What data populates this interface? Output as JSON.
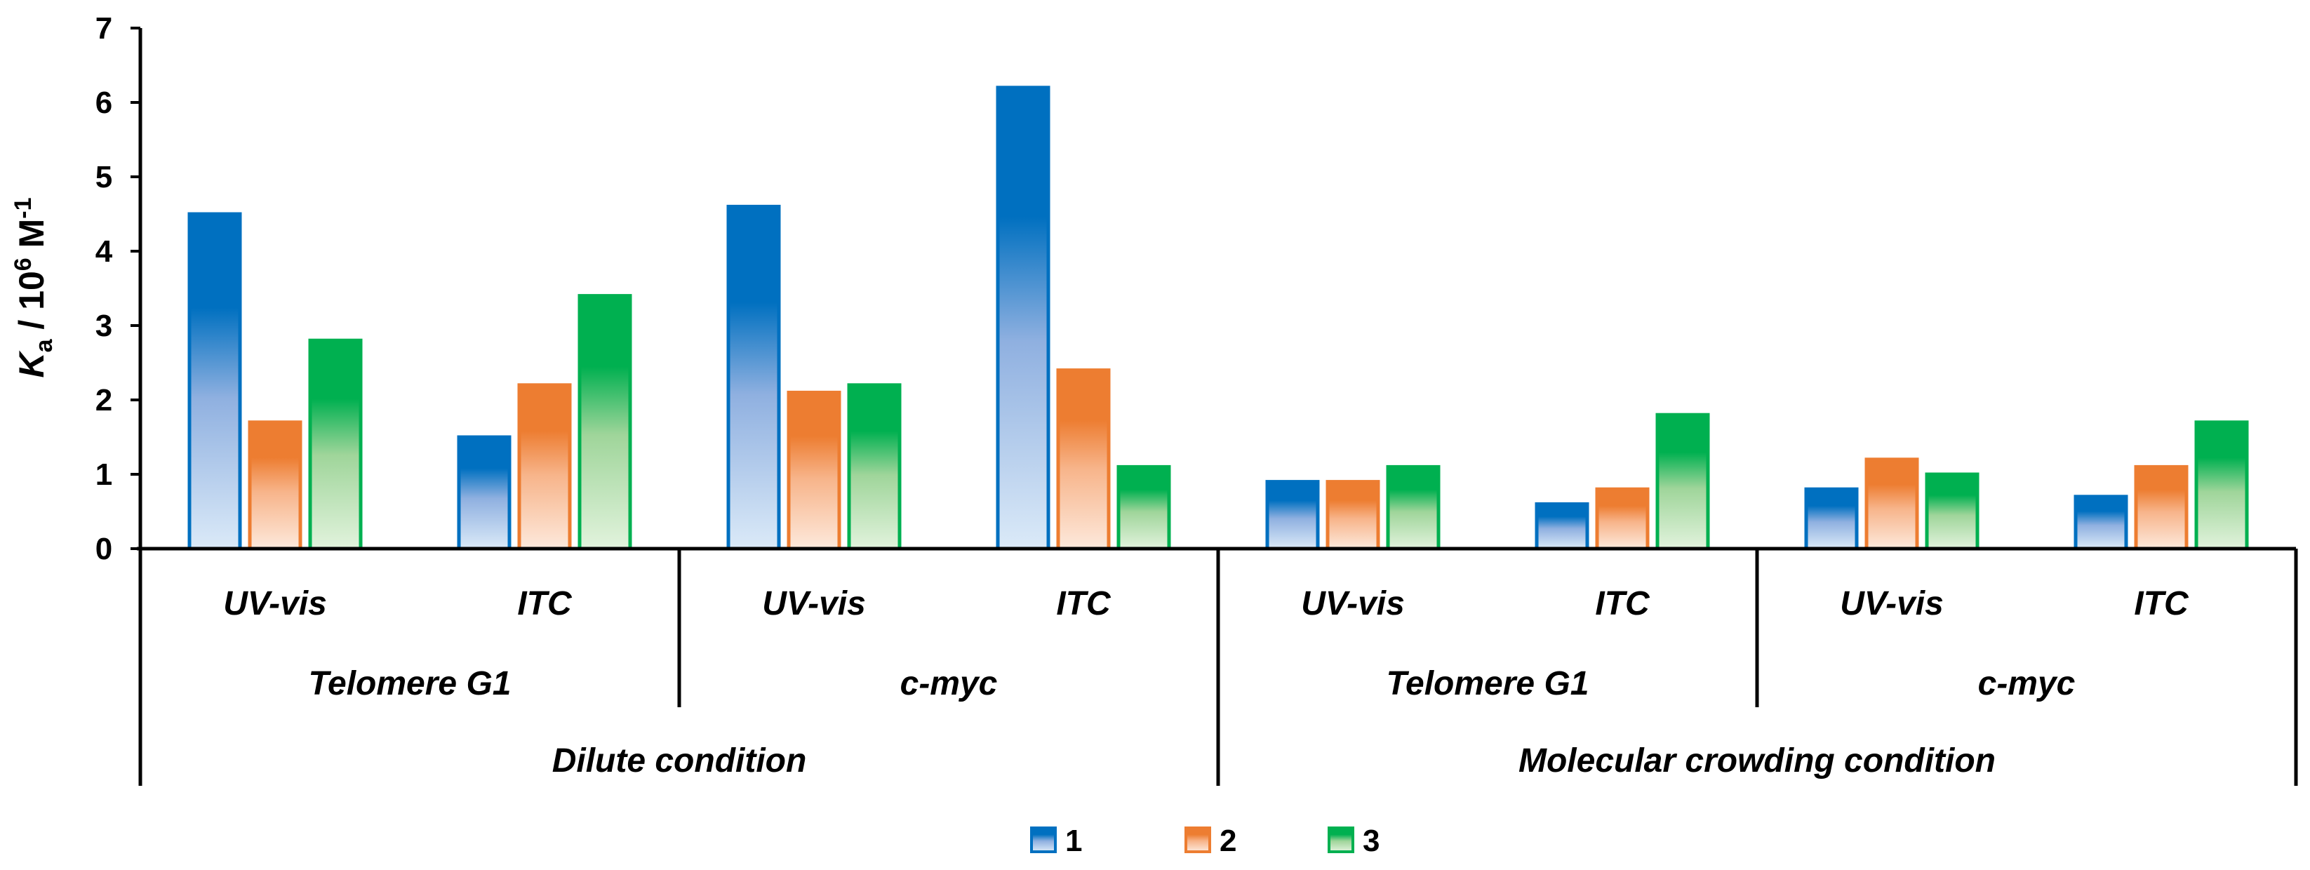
{
  "chart_data": {
    "type": "bar",
    "ylabel": {
      "main": "K",
      "sub": "a",
      "mid": " / 10",
      "sup1": "6",
      "unit": " M",
      "sup2": "-1"
    },
    "ylim": [
      0,
      7
    ],
    "yticks": [
      "0",
      "1",
      "2",
      "3",
      "4",
      "5",
      "6",
      "7"
    ],
    "categories_level1": [
      "UV-vis",
      "ITC",
      "UV-vis",
      "ITC",
      "UV-vis",
      "ITC",
      "UV-vis",
      "ITC"
    ],
    "categories_level2": [
      "Telomere G1",
      "c-myc",
      "Telomere G1",
      "c-myc"
    ],
    "categories_level3": [
      "Dilute condition",
      "Molecular crowding condition"
    ],
    "series": [
      {
        "name": "1",
        "color": "#0070c0",
        "light": "#dbeaf8",
        "mid": "#8fb0e0",
        "values": [
          4.5,
          1.5,
          4.6,
          6.2,
          0.9,
          0.6,
          0.8,
          0.7
        ]
      },
      {
        "name": "2",
        "color": "#ed7d31",
        "light": "#fde9dc",
        "mid": "#f7b48a",
        "values": [
          1.7,
          2.2,
          2.1,
          2.4,
          0.9,
          0.8,
          1.2,
          1.1
        ]
      },
      {
        "name": "3",
        "color": "#00b050",
        "light": "#e2f3dd",
        "mid": "#9fd59a",
        "values": [
          2.8,
          3.4,
          2.2,
          1.1,
          1.1,
          1.8,
          1.0,
          1.7
        ]
      }
    ]
  }
}
